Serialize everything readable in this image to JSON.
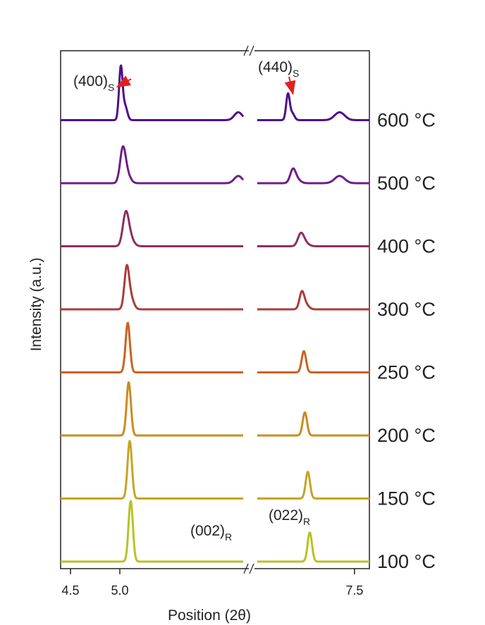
{
  "chart_data": {
    "type": "line",
    "xlabel": "Position (2θ)",
    "ylabel": "Intensity (a.u.)",
    "xlim_left": [
      4.4,
      6.3
    ],
    "xlim_right": [
      6.5,
      7.65
    ],
    "x_ticks": [
      {
        "value": 4.5,
        "label": "4.5"
      },
      {
        "value": 5.0,
        "label": "5.0"
      },
      {
        "value": 7.5,
        "label": "7.5"
      }
    ],
    "axis_break": true,
    "grid": false,
    "y_ticks": "none",
    "series": [
      {
        "name": "100 °C",
        "color": "#b7c226",
        "peaks": [
          {
            "x": 5.11,
            "height": 1.0,
            "width": 0.022
          },
          {
            "x": 7.05,
            "height": 0.48,
            "width": 0.022
          }
        ]
      },
      {
        "name": "150 °C",
        "color": "#c4a526",
        "peaks": [
          {
            "x": 5.1,
            "height": 0.95,
            "width": 0.022
          },
          {
            "x": 7.03,
            "height": 0.44,
            "width": 0.022
          }
        ]
      },
      {
        "name": "200 °C",
        "color": "#cc8a22",
        "peaks": [
          {
            "x": 5.09,
            "height": 0.88,
            "width": 0.022
          },
          {
            "x": 7.0,
            "height": 0.38,
            "width": 0.022
          }
        ]
      },
      {
        "name": "250 °C",
        "color": "#c9641f",
        "peaks": [
          {
            "x": 5.08,
            "height": 0.82,
            "width": 0.022
          },
          {
            "x": 6.99,
            "height": 0.35,
            "width": 0.022
          }
        ]
      },
      {
        "name": "300 °C",
        "color": "#aa3c3a",
        "peaks": [
          {
            "x": 5.07,
            "height": 0.68,
            "width": 0.024
          },
          {
            "x": 6.97,
            "height": 0.28,
            "width": 0.024
          }
        ]
      },
      {
        "name": "400 °C",
        "color": "#8a2f64",
        "peaks": [
          {
            "x": 5.06,
            "height": 0.52,
            "width": 0.03
          },
          {
            "x": 6.96,
            "height": 0.2,
            "width": 0.03
          }
        ]
      },
      {
        "name": "500 °C",
        "color": "#6e1f86",
        "peaks": [
          {
            "x": 5.03,
            "height": 0.55,
            "width": 0.028
          },
          {
            "x": 6.88,
            "height": 0.22,
            "width": 0.028
          }
        ]
      },
      {
        "name": "600 °C",
        "color": "#4f0e8c",
        "peaks": [
          {
            "x": 5.01,
            "height": 0.88,
            "width": 0.018
          },
          {
            "x": 6.83,
            "height": 0.43,
            "width": 0.018
          }
        ]
      }
    ],
    "annotations": [
      {
        "main": "(400)",
        "sub": "S",
        "series": "600 °C",
        "points_to_x": 5.01,
        "arrow_color": "#e02020"
      },
      {
        "main": "(440)",
        "sub": "S",
        "series": "600 °C",
        "points_to_x": 6.83,
        "arrow_color": "#e02020"
      },
      {
        "main": "(002)",
        "sub": "R",
        "series": "100 °C"
      },
      {
        "main": "(022)",
        "sub": "R",
        "series": "100 °C"
      }
    ]
  }
}
